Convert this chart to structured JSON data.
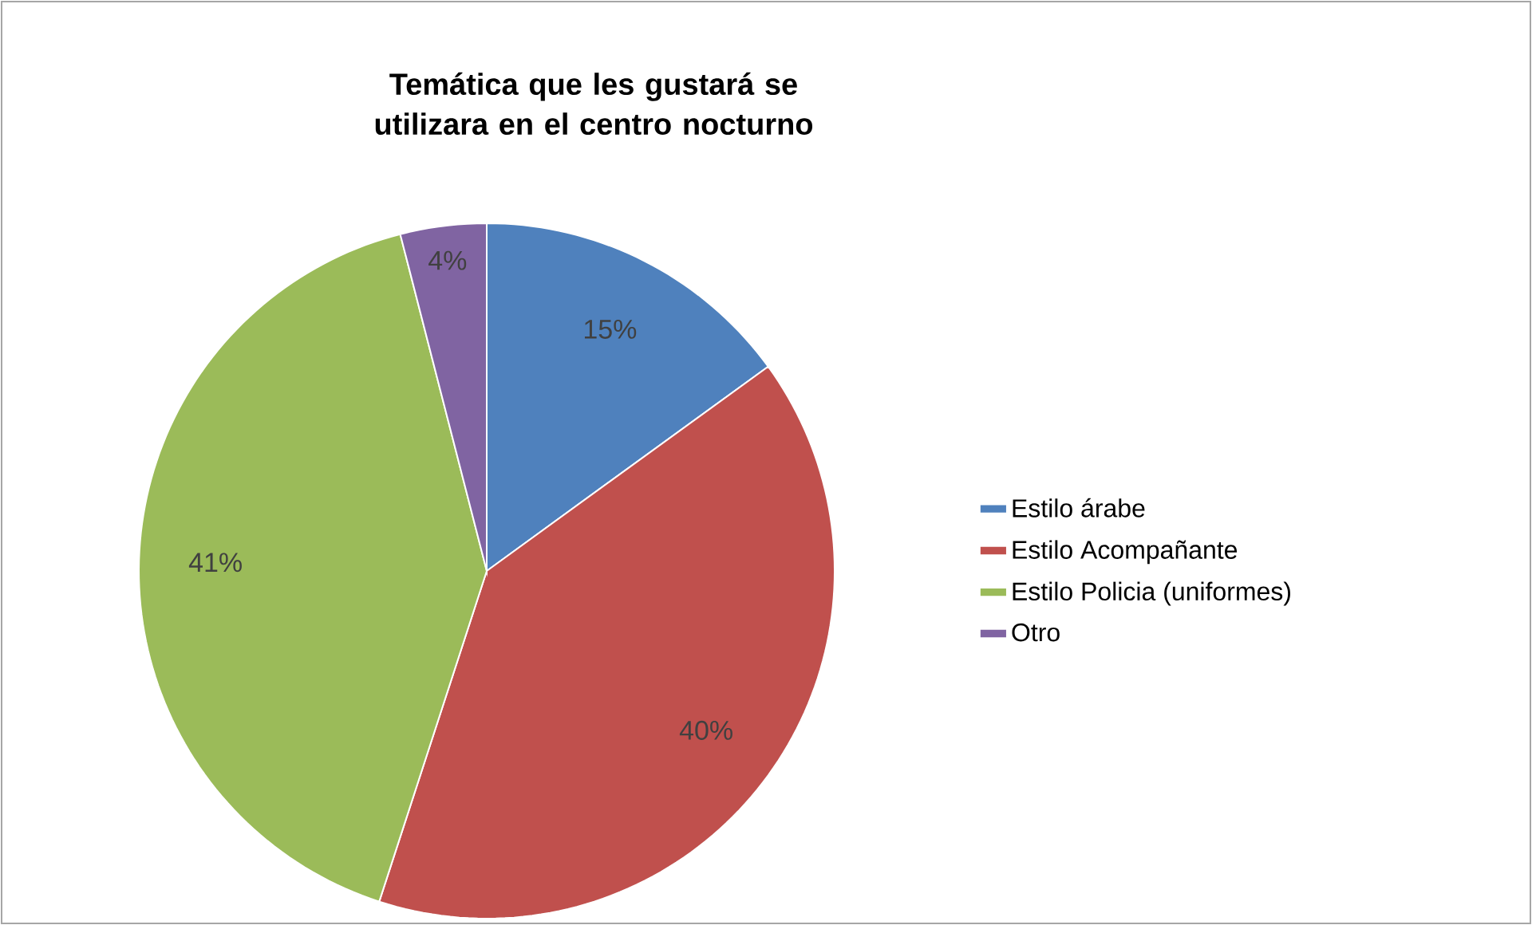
{
  "chart_data": {
    "type": "pie",
    "title": "Temática que les gustará se utilizara en el centro nocturno",
    "categories": [
      "Estilo árabe",
      "Estilo Acompañante",
      "Estilo Policia (uniformes)",
      "Otro"
    ],
    "values": [
      15,
      40,
      41,
      4
    ],
    "colors": [
      "#4f81bd",
      "#c0504d",
      "#9bbb59",
      "#8064a2"
    ],
    "value_labels": [
      "15%",
      "40%",
      "41%",
      "4%"
    ],
    "legend": "right"
  }
}
